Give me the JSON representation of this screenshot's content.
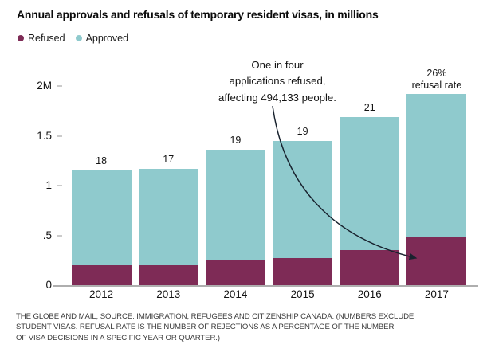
{
  "title": "Annual approvals and refusals of temporary resident visas, in millions",
  "legend": [
    {
      "label": "Refused",
      "color": "#7e2b56"
    },
    {
      "label": "Approved",
      "color": "#8fcacd"
    }
  ],
  "annotation": {
    "lines": [
      "One in four",
      "applications refused,",
      "affecting 494,133 people."
    ],
    "arrow_color": "#18222e"
  },
  "chart_data": {
    "type": "bar",
    "stacked": true,
    "title": "Annual approvals and refusals of temporary resident visas, in millions",
    "unit": "millions of visa decisions",
    "categories": [
      "2012",
      "2013",
      "2014",
      "2015",
      "2016",
      "2017"
    ],
    "series": [
      {
        "name": "Refused",
        "color": "#7e2b56",
        "values": [
          0.2,
          0.2,
          0.25,
          0.27,
          0.35,
          0.49
        ]
      },
      {
        "name": "Approved",
        "color": "#8fcacd",
        "values": [
          0.95,
          0.97,
          1.11,
          1.18,
          1.34,
          1.43
        ]
      }
    ],
    "totals": [
      1.15,
      1.17,
      1.36,
      1.45,
      1.69,
      1.92
    ],
    "bar_labels": [
      "18",
      "17",
      "19",
      "19",
      "21",
      null
    ],
    "rate_label_lines": [
      "26%",
      "refusal rate"
    ],
    "yticks": [
      {
        "value": 0,
        "label": "0"
      },
      {
        "value": 0.5,
        "label": ".5"
      },
      {
        "value": 1,
        "label": "1"
      },
      {
        "value": 1.5,
        "label": "1.5"
      },
      {
        "value": 2,
        "label": "2M"
      }
    ],
    "ylim": [
      0,
      2.1
    ],
    "grid": false,
    "legend_position": "top-left"
  },
  "footer": {
    "lines": [
      "THE GLOBE AND MAIL, SOURCE: IMMIGRATION, REFUGEES AND CITIZENSHIP CANADA. (NUMBERS EXCLUDE",
      "STUDENT VISAS. REFUSAL RATE IS THE NUMBER OF REJECTIONS AS A PERCENTAGE OF THE NUMBER",
      "OF VISA DECISIONS IN A SPECIFIC YEAR OR QUARTER.)"
    ]
  }
}
